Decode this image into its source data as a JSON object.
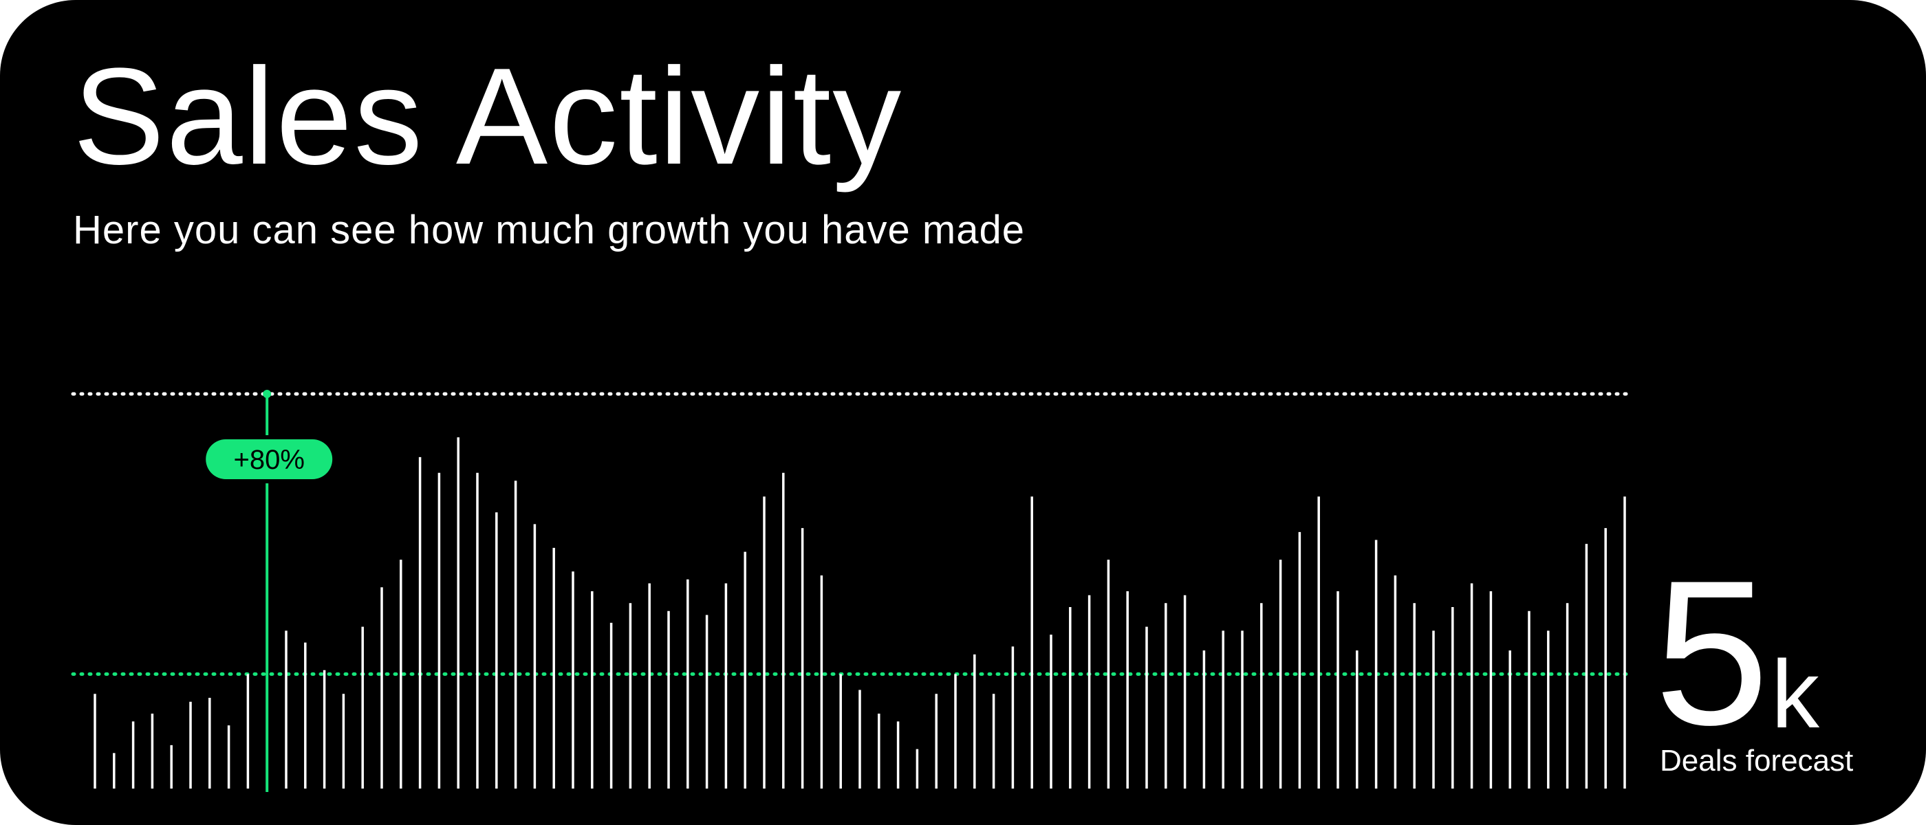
{
  "header": {
    "title": "Sales Activity",
    "subtitle": "Here you can see how much growth you have made"
  },
  "kpi": {
    "value": "5",
    "unit": "k",
    "label": "Deals forecast"
  },
  "colors": {
    "background": "#000000",
    "bars": "#ffffff",
    "accent": "#16e57a",
    "badge_text": "#000000"
  },
  "chart_data": {
    "type": "bar",
    "title": "",
    "xlabel": "",
    "ylabel": "",
    "ylim": [
      0,
      100
    ],
    "grid": false,
    "reference_lines": [
      {
        "y": 100,
        "style": "dotted",
        "color": "white"
      },
      {
        "y": 29,
        "style": "dotted",
        "color": "green"
      }
    ],
    "highlight": {
      "index": 9,
      "label": "+80%"
    },
    "values": [
      24,
      9,
      17,
      19,
      11,
      22,
      23,
      16,
      29,
      0,
      40,
      37,
      30,
      24,
      41,
      51,
      58,
      84,
      80,
      89,
      80,
      70,
      78,
      67,
      61,
      55,
      50,
      42,
      47,
      52,
      45,
      53,
      44,
      52,
      60,
      74,
      80,
      66,
      54,
      29,
      25,
      19,
      17,
      10,
      24,
      29,
      34,
      24,
      36,
      74,
      39,
      46,
      49,
      58,
      50,
      41,
      47,
      49,
      35,
      40,
      40,
      47,
      58,
      65,
      74,
      50,
      35,
      63,
      54,
      47,
      40,
      46,
      52,
      50,
      35,
      45,
      40,
      47,
      62,
      66,
      74
    ]
  }
}
